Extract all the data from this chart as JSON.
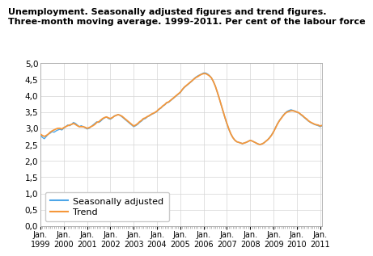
{
  "title_line1": "Unemployment. Seasonally adjusted figures and trend figures.",
  "title_line2": "Three-month moving average. 1999-2011. Per cent of the labour force",
  "title_fontsize": 8.0,
  "seasonally_adjusted": [
    2.8,
    2.72,
    2.68,
    2.75,
    2.82,
    2.85,
    2.9,
    2.88,
    2.92,
    2.95,
    2.97,
    2.95,
    3.0,
    3.05,
    3.1,
    3.08,
    3.12,
    3.18,
    3.15,
    3.1,
    3.05,
    3.08,
    3.05,
    3.02,
    2.98,
    3.0,
    3.05,
    3.1,
    3.15,
    3.2,
    3.18,
    3.22,
    3.28,
    3.32,
    3.35,
    3.3,
    3.28,
    3.32,
    3.38,
    3.4,
    3.42,
    3.4,
    3.35,
    3.3,
    3.25,
    3.2,
    3.15,
    3.1,
    3.05,
    3.08,
    3.12,
    3.18,
    3.22,
    3.28,
    3.3,
    3.35,
    3.38,
    3.42,
    3.45,
    3.48,
    3.52,
    3.58,
    3.62,
    3.68,
    3.72,
    3.78,
    3.8,
    3.85,
    3.9,
    3.95,
    4.0,
    4.05,
    4.1,
    4.18,
    4.25,
    4.3,
    4.35,
    4.4,
    4.45,
    4.52,
    4.57,
    4.61,
    4.64,
    4.67,
    4.7,
    4.7,
    4.67,
    4.62,
    4.55,
    4.44,
    4.3,
    4.12,
    3.93,
    3.72,
    3.52,
    3.32,
    3.13,
    2.97,
    2.83,
    2.72,
    2.64,
    2.59,
    2.57,
    2.55,
    2.53,
    2.55,
    2.57,
    2.6,
    2.63,
    2.61,
    2.58,
    2.55,
    2.52,
    2.5,
    2.52,
    2.55,
    2.6,
    2.65,
    2.72,
    2.8,
    2.9,
    3.02,
    3.14,
    3.24,
    3.32,
    3.4,
    3.47,
    3.52,
    3.55,
    3.57,
    3.55,
    3.53,
    3.5,
    3.47,
    3.42,
    3.37,
    3.32,
    3.27,
    3.22,
    3.18,
    3.15,
    3.12,
    3.1,
    3.08,
    3.05,
    3.08,
    3.12,
    3.15,
    3.18
  ],
  "trend": [
    2.82,
    2.78,
    2.75,
    2.78,
    2.82,
    2.88,
    2.92,
    2.95,
    2.98,
    3.0,
    3.0,
    2.98,
    3.02,
    3.05,
    3.08,
    3.1,
    3.12,
    3.15,
    3.12,
    3.08,
    3.05,
    3.05,
    3.05,
    3.03,
    3.0,
    3.02,
    3.05,
    3.08,
    3.12,
    3.18,
    3.2,
    3.25,
    3.3,
    3.33,
    3.35,
    3.32,
    3.3,
    3.33,
    3.37,
    3.4,
    3.42,
    3.4,
    3.37,
    3.32,
    3.27,
    3.22,
    3.17,
    3.12,
    3.07,
    3.1,
    3.14,
    3.2,
    3.24,
    3.3,
    3.32,
    3.36,
    3.39,
    3.43,
    3.46,
    3.49,
    3.53,
    3.59,
    3.63,
    3.69,
    3.73,
    3.79,
    3.81,
    3.86,
    3.91,
    3.96,
    4.01,
    4.06,
    4.11,
    4.19,
    4.26,
    4.31,
    4.36,
    4.41,
    4.46,
    4.51,
    4.56,
    4.59,
    4.63,
    4.66,
    4.68,
    4.68,
    4.65,
    4.61,
    4.55,
    4.44,
    4.3,
    4.12,
    3.93,
    3.73,
    3.53,
    3.33,
    3.15,
    2.98,
    2.83,
    2.72,
    2.64,
    2.59,
    2.57,
    2.55,
    2.53,
    2.55,
    2.57,
    2.6,
    2.63,
    2.61,
    2.58,
    2.55,
    2.52,
    2.5,
    2.52,
    2.55,
    2.6,
    2.65,
    2.71,
    2.79,
    2.89,
    3.01,
    3.13,
    3.23,
    3.31,
    3.39,
    3.46,
    3.5,
    3.52,
    3.54,
    3.54,
    3.52,
    3.5,
    3.48,
    3.43,
    3.39,
    3.33,
    3.29,
    3.23,
    3.19,
    3.16,
    3.13,
    3.11,
    3.1,
    3.07,
    3.09,
    3.12,
    3.14,
    3.16
  ],
  "color_seasonally": "#4da6e8",
  "color_trend": "#f5973a",
  "tick_fontsize": 7.5,
  "legend_fontsize": 8,
  "ylim": [
    0.0,
    5.0
  ],
  "yticks": [
    0.0,
    0.5,
    1.0,
    1.5,
    2.0,
    2.5,
    3.0,
    3.5,
    4.0,
    4.5,
    5.0
  ],
  "xtick_years": [
    1999,
    2000,
    2001,
    2002,
    2003,
    2004,
    2005,
    2006,
    2007,
    2008,
    2009,
    2010,
    2011
  ],
  "grid_color": "#d5d5d5",
  "background_color": "#ffffff",
  "legend_labels": [
    "Seasonally adjusted",
    "Trend"
  ]
}
